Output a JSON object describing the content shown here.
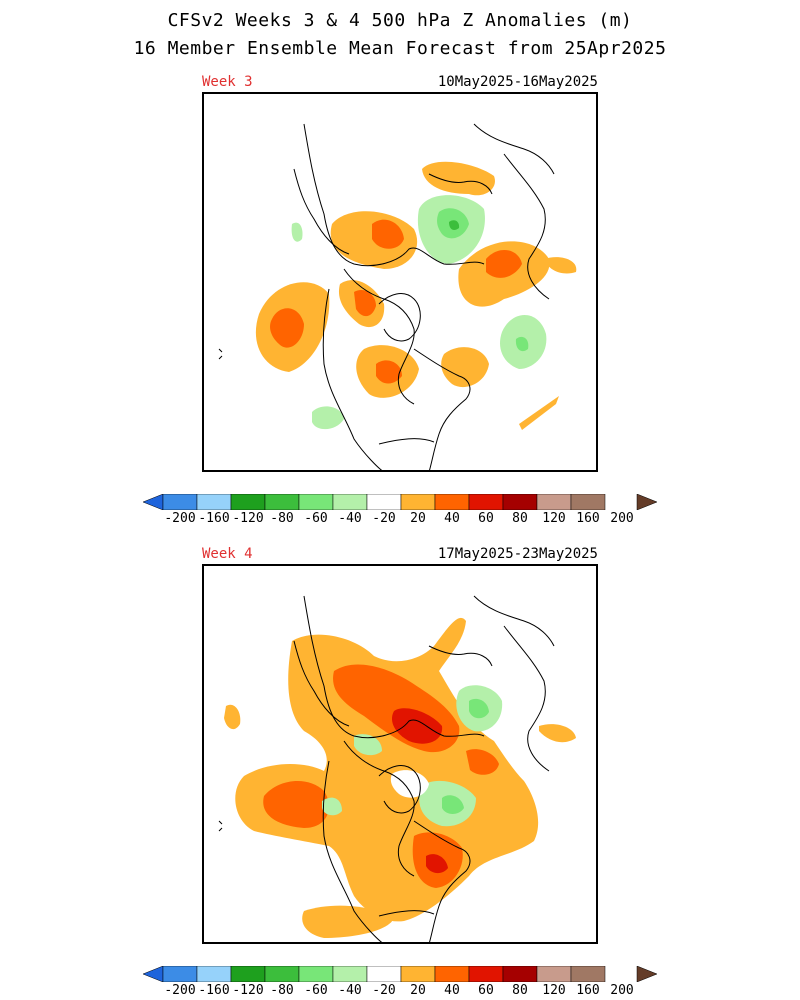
{
  "header": {
    "title": "CFSv2 Weeks 3 & 4 500 hPa Z Anomalies (m)",
    "subtitle": "16 Member Ensemble Mean Forecast from 25Apr2025"
  },
  "panels": [
    {
      "week_label": "Week 3",
      "date_range": "10May2025-16May2025"
    },
    {
      "week_label": "Week 4",
      "date_range": "17May2025-23May2025"
    }
  ],
  "colorbar": {
    "colors": [
      "#3c8ce6",
      "#96d2fa",
      "#1ea01e",
      "#3cbe3c",
      "#78e678",
      "#b4f0aa",
      "#ffffff",
      "#ffb432",
      "#ff6400",
      "#e11400",
      "#a50000",
      "#c89b8c",
      "#a07864"
    ],
    "end_left": "#1e64dc",
    "end_right": "#643c28",
    "tick_labels": [
      "-200",
      "-160",
      "-120",
      "-80",
      "-60",
      "-40",
      "-20",
      "20",
      "40",
      "60",
      "80",
      "120",
      "160",
      "200"
    ]
  }
}
